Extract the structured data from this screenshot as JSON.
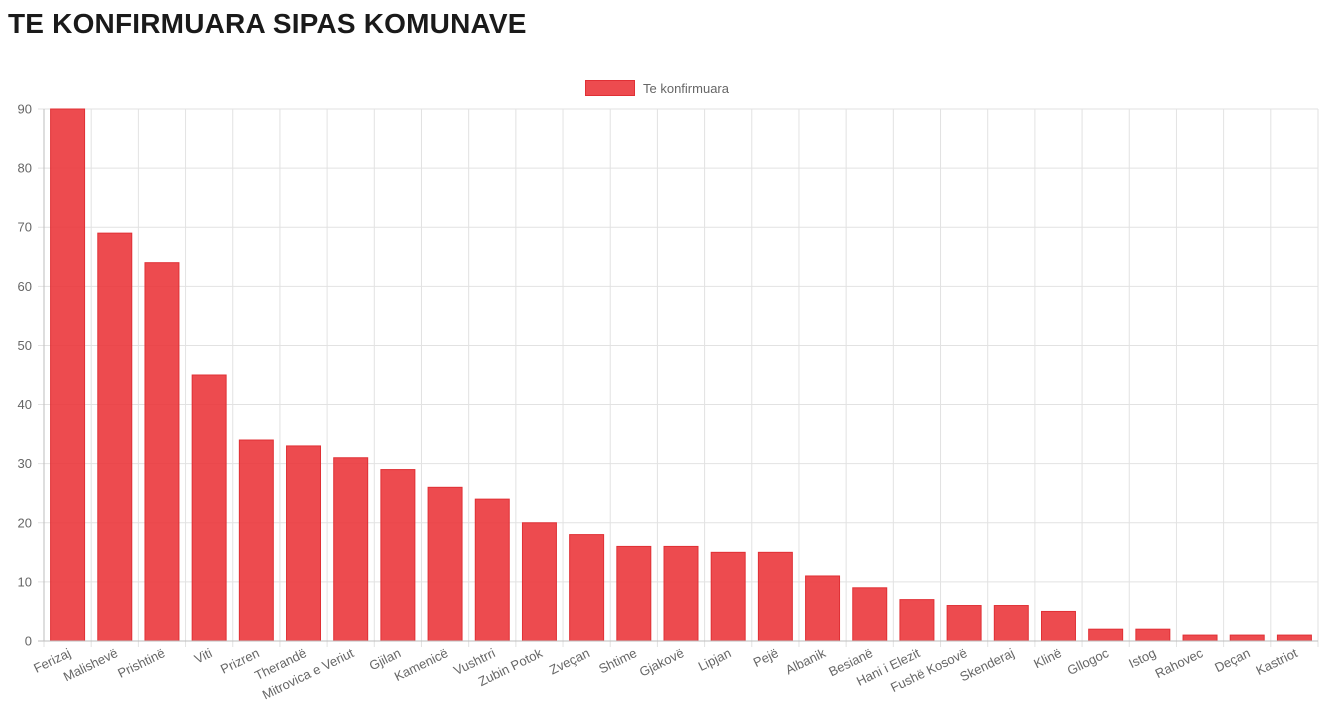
{
  "page": {
    "title": "TE KONFIRMUARA SIPAS KOMUNAVE"
  },
  "chart_data": {
    "type": "bar",
    "title": "",
    "xlabel": "",
    "ylabel": "",
    "legend": {
      "position": "top",
      "entries": [
        "Te konfirmuara"
      ]
    },
    "grid": true,
    "ylim": [
      0,
      90
    ],
    "yticks": [
      0,
      10,
      20,
      30,
      40,
      50,
      60,
      70,
      80,
      90
    ],
    "categories": [
      "Ferizaj",
      "Malishevë",
      "Prishtinë",
      "Viti",
      "Prizren",
      "Therandë",
      "Mitrovica e Veriut",
      "Gjilan",
      "Kamenicë",
      "Vushtrri",
      "Zubin Potok",
      "Zveçan",
      "Shtime",
      "Gjakovë",
      "Lipjan",
      "Pejë",
      "Albanik",
      "Besianë",
      "Hani i Elezit",
      "Fushë Kosovë",
      "Skenderaj",
      "Klinë",
      "Gllogoc",
      "Istog",
      "Rahovec",
      "Deçan",
      "Kastriot"
    ],
    "series": [
      {
        "name": "Te konfirmuara",
        "color": "#eb373c",
        "values": [
          90,
          69,
          64,
          45,
          34,
          33,
          31,
          29,
          26,
          24,
          20,
          18,
          16,
          16,
          15,
          15,
          11,
          9,
          7,
          6,
          6,
          5,
          2,
          2,
          1,
          1,
          1
        ]
      }
    ]
  }
}
